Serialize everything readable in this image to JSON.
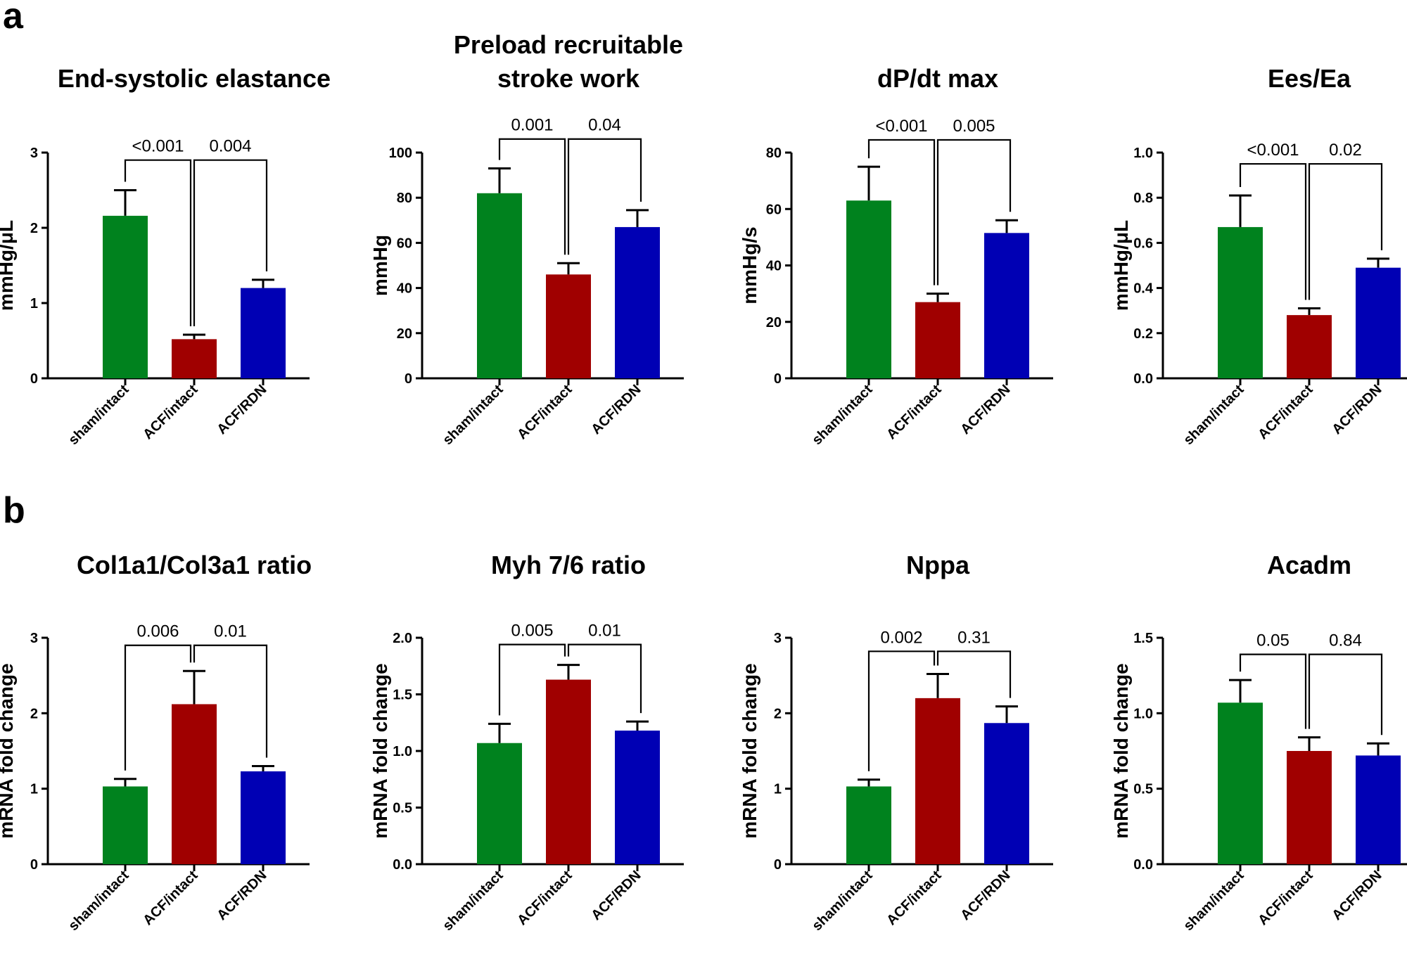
{
  "panel_labels": [
    "a",
    "b"
  ],
  "colors": {
    "sham/intact": "#00821e",
    "ACF/intact": "#a00000",
    "ACF/RDN": "#0000b4"
  },
  "chart_data": [
    {
      "panel": "a",
      "type": "bar",
      "title_lines": [
        "End-systolic elastance"
      ],
      "ylabel": "mmHg/μL",
      "categories": [
        "sham/intact",
        "ACF/intact",
        "ACF/RDN"
      ],
      "values": [
        2.16,
        0.52,
        1.2
      ],
      "errors": [
        0.34,
        0.06,
        0.11
      ],
      "ylim": [
        0,
        3
      ],
      "yticks": [
        "0",
        "1",
        "2",
        "3"
      ],
      "comparisons": [
        {
          "from": 0,
          "to": 1,
          "label": "<0.001",
          "y": 2.9
        },
        {
          "from": 1,
          "to": 2,
          "label": "0.004",
          "y": 2.9
        }
      ]
    },
    {
      "panel": "a",
      "type": "bar",
      "title_lines": [
        "Preload recruitable",
        "stroke work"
      ],
      "ylabel": "mmHg",
      "categories": [
        "sham/intact",
        "ACF/intact",
        "ACF/RDN"
      ],
      "values": [
        82,
        46,
        67
      ],
      "errors": [
        11,
        5,
        7.5
      ],
      "ylim": [
        0,
        100
      ],
      "yticks": [
        "0",
        "20",
        "40",
        "60",
        "80",
        "100"
      ],
      "comparisons": [
        {
          "from": 0,
          "to": 1,
          "label": "0.001",
          "y": 106
        },
        {
          "from": 1,
          "to": 2,
          "label": "0.04",
          "y": 106
        }
      ]
    },
    {
      "panel": "a",
      "type": "bar",
      "title_lines": [
        "dP/dt max"
      ],
      "ylabel": "mmHg/s",
      "categories": [
        "sham/intact",
        "ACF/intact",
        "ACF/RDN"
      ],
      "values": [
        63,
        27,
        51.5
      ],
      "errors": [
        12,
        3,
        4.5
      ],
      "ylim": [
        0,
        80
      ],
      "yticks": [
        "0",
        "20",
        "40",
        "60",
        "80"
      ],
      "comparisons": [
        {
          "from": 0,
          "to": 1,
          "label": "<0.001",
          "y": 84.5
        },
        {
          "from": 1,
          "to": 2,
          "label": "0.005",
          "y": 84.5
        }
      ]
    },
    {
      "panel": "a",
      "type": "bar",
      "title_lines": [
        "Ees/Ea"
      ],
      "ylabel": "mmHg/μL",
      "categories": [
        "sham/intact",
        "ACF/intact",
        "ACF/RDN"
      ],
      "values": [
        0.67,
        0.28,
        0.49
      ],
      "errors": [
        0.14,
        0.03,
        0.04
      ],
      "ylim": [
        0,
        1.0
      ],
      "yticks": [
        "0.0",
        "0.2",
        "0.4",
        "0.6",
        "0.8",
        "1.0"
      ],
      "comparisons": [
        {
          "from": 0,
          "to": 1,
          "label": "<0.001",
          "y": 0.95
        },
        {
          "from": 1,
          "to": 2,
          "label": "0.02",
          "y": 0.95
        }
      ]
    },
    {
      "panel": "b",
      "type": "bar",
      "title_lines": [
        "Col1a1/Col3a1 ratio"
      ],
      "ylabel": "mRNA fold change",
      "categories": [
        "sham/intact",
        "ACF/intact",
        "ACF/RDN"
      ],
      "values": [
        1.03,
        2.12,
        1.23
      ],
      "errors": [
        0.1,
        0.44,
        0.07
      ],
      "ylim": [
        0,
        3
      ],
      "yticks": [
        "0",
        "1",
        "2",
        "3"
      ],
      "comparisons": [
        {
          "from": 0,
          "to": 1,
          "label": "0.006",
          "y": 2.9
        },
        {
          "from": 1,
          "to": 2,
          "label": "0.01",
          "y": 2.9
        }
      ]
    },
    {
      "panel": "b",
      "type": "bar",
      "title_lines": [
        "Myh 7/6 ratio"
      ],
      "ylabel": "mRNA fold change",
      "categories": [
        "sham/intact",
        "ACF/intact",
        "ACF/RDN"
      ],
      "values": [
        1.07,
        1.63,
        1.18
      ],
      "errors": [
        0.17,
        0.13,
        0.08
      ],
      "ylim": [
        0,
        2.0
      ],
      "yticks": [
        "0.0",
        "0.5",
        "1.0",
        "1.5",
        "2.0"
      ],
      "comparisons": [
        {
          "from": 0,
          "to": 1,
          "label": "0.005",
          "y": 1.94
        },
        {
          "from": 1,
          "to": 2,
          "label": "0.01",
          "y": 1.94
        }
      ]
    },
    {
      "panel": "b",
      "type": "bar",
      "title_lines": [
        "Nppa"
      ],
      "ylabel": "mRNA fold change",
      "categories": [
        "sham/intact",
        "ACF/intact",
        "ACF/RDN"
      ],
      "values": [
        1.03,
        2.2,
        1.87
      ],
      "errors": [
        0.09,
        0.32,
        0.22
      ],
      "ylim": [
        0,
        3
      ],
      "yticks": [
        "0",
        "1",
        "2",
        "3"
      ],
      "comparisons": [
        {
          "from": 0,
          "to": 1,
          "label": "0.002",
          "y": 2.82
        },
        {
          "from": 1,
          "to": 2,
          "label": "0.31",
          "y": 2.82
        }
      ]
    },
    {
      "panel": "b",
      "type": "bar",
      "title_lines": [
        "Acadm"
      ],
      "ylabel": "mRNA fold change",
      "categories": [
        "sham/intact",
        "ACF/intact",
        "ACF/RDN"
      ],
      "values": [
        1.07,
        0.75,
        0.72
      ],
      "errors": [
        0.15,
        0.09,
        0.08
      ],
      "ylim": [
        0,
        1.5
      ],
      "yticks": [
        "0.0",
        "0.5",
        "1.0",
        "1.5"
      ],
      "comparisons": [
        {
          "from": 0,
          "to": 1,
          "label": "0.05",
          "y": 1.39
        },
        {
          "from": 1,
          "to": 2,
          "label": "0.84",
          "y": 1.39
        }
      ]
    }
  ]
}
